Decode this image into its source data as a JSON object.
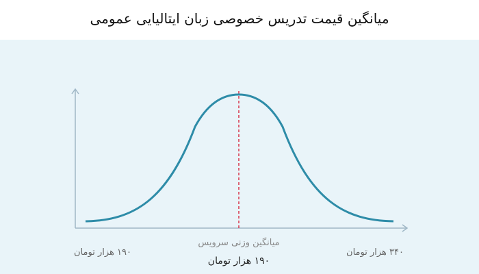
{
  "header": {
    "title": "میانگین قیمت تدریس خصوصی زبان ایتالیایی عمومی"
  },
  "labels": {
    "min": "۱۹۰ هزار تومان",
    "max": "۳۴۰ هزار تومان",
    "average_caption": "میانگین وزنی سرویس",
    "average_value": "۱۹۰ هزار تومان"
  }
}
